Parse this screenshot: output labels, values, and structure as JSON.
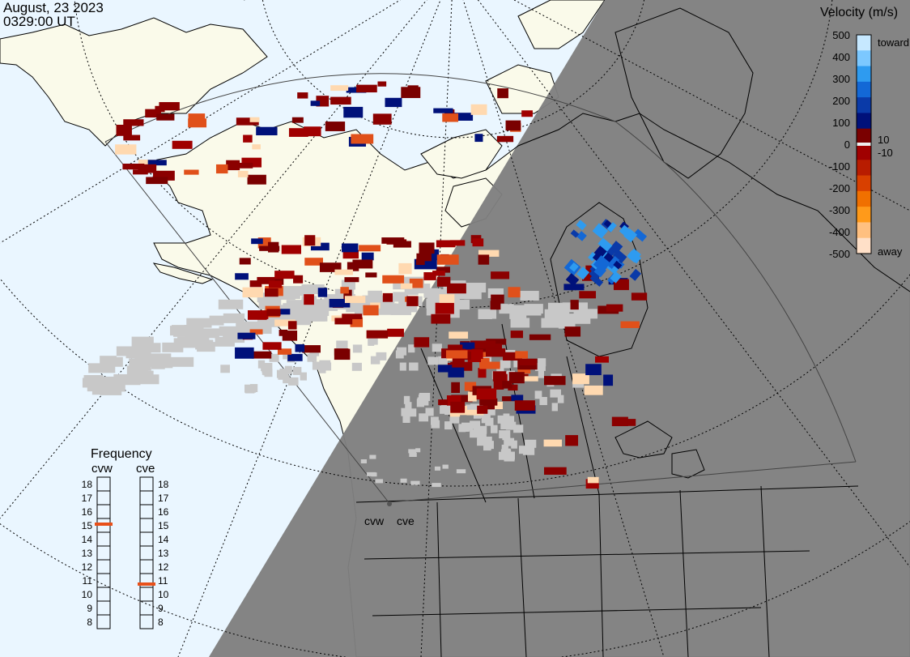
{
  "header": {
    "date": "August, 23 2023",
    "time": "0329:00 UT"
  },
  "colors": {
    "ocean": "#eaf6ff",
    "land_day": "#fafaea",
    "night": "#7f7f7f",
    "ground_scatter": "#c8c8c8"
  },
  "velocity_legend": {
    "title": "Velocity (m/s)",
    "ticks": [
      "500",
      "400",
      "300",
      "200",
      "100",
      "0",
      "-100",
      "-200",
      "-300",
      "-400",
      "-500"
    ],
    "label_10": "10",
    "label_neg10": "-10",
    "toward": "toward",
    "away": "away",
    "colors_top_to_bottom": [
      "#c6e8ff",
      "#7cc8ff",
      "#2e9bf0",
      "#1368d6",
      "#0a3aa8",
      "#00117a",
      "#7a0000",
      "#a00000",
      "#b81c00",
      "#d84000",
      "#f07000",
      "#ff9a1a",
      "#ffc080",
      "#ffe0c8"
    ]
  },
  "frequency": {
    "title": "Frequency",
    "radars": [
      {
        "name": "cvw",
        "value_mhz": 15
      },
      {
        "name": "cve",
        "value_mhz": 11
      }
    ],
    "scale": [
      "18",
      "17",
      "16",
      "15",
      "14",
      "13",
      "12",
      "11",
      "10",
      "9",
      "8"
    ]
  },
  "map": {
    "site_labels": [
      "cvw",
      "cve"
    ]
  }
}
